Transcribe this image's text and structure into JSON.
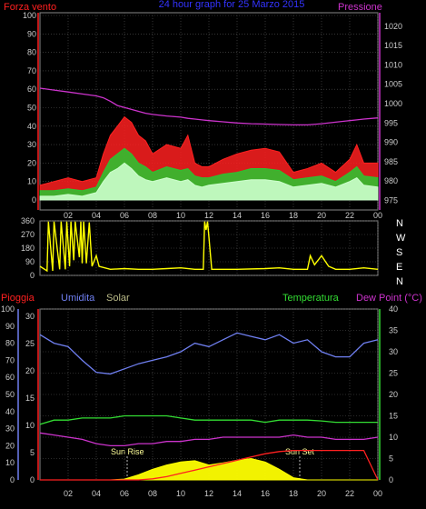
{
  "colors": {
    "background": "#000000",
    "wind": "#ff2020",
    "wind_mid": "#30c030",
    "wind_low": "#ccffcc",
    "pressure": "#cc33cc",
    "direction": "#ffff00",
    "rain": "#ff2020",
    "humidity": "#6f7ff0",
    "solar": "#ffff00",
    "temperature": "#33dd33",
    "dewpoint": "#cc33cc",
    "title": "#3333ff",
    "grid": "#555555",
    "axis_text": "#cccccc"
  },
  "header": {
    "left": "Forza vento",
    "center": "24 hour graph for  25 Marzo 2015",
    "right": "Pressione"
  },
  "lower_header": {
    "rain": "Pioggia",
    "humidity": "Umidita",
    "solar": "Solar",
    "temperature": "Temperatura",
    "dewpoint": "Dew Point (°C)"
  },
  "direction_labels": [
    "N",
    "W",
    "S",
    "E",
    "N"
  ],
  "annotations": {
    "sunrise": "Sun Rise",
    "sunset": "Sun Set"
  },
  "x_tick_labels": [
    "02",
    "04",
    "06",
    "08",
    "10",
    "12",
    "14",
    "16",
    "18",
    "20",
    "22",
    "00"
  ],
  "chart_data": [
    {
      "type": "line",
      "title": "Forza vento / Pressione",
      "x_hours": [
        0,
        1,
        2,
        3,
        4,
        4.5,
        5,
        5.5,
        6,
        6.5,
        7,
        7.5,
        8,
        9,
        10,
        10.5,
        11,
        11.5,
        12,
        13,
        14,
        15,
        16,
        17,
        18,
        19,
        20,
        21,
        22,
        22.5,
        23,
        24
      ],
      "series": [
        {
          "name": "Forza vento",
          "axis": "left",
          "values": [
            8,
            10,
            12,
            10,
            12,
            25,
            35,
            40,
            45,
            42,
            35,
            32,
            25,
            30,
            28,
            35,
            20,
            18,
            18,
            22,
            25,
            27,
            28,
            26,
            15,
            17,
            20,
            15,
            22,
            30,
            20,
            20
          ]
        },
        {
          "name": "Forza vento (mid)",
          "axis": "left",
          "values": [
            5,
            5,
            6,
            5,
            7,
            15,
            22,
            25,
            28,
            25,
            20,
            18,
            15,
            18,
            16,
            17,
            13,
            12,
            12,
            14,
            15,
            17,
            17,
            16,
            11,
            12,
            13,
            10,
            15,
            18,
            13,
            12
          ]
        },
        {
          "name": "Forza vento (low)",
          "axis": "left",
          "values": [
            2,
            2,
            3,
            2,
            4,
            10,
            15,
            17,
            20,
            17,
            13,
            11,
            10,
            12,
            10,
            11,
            8,
            7,
            8,
            9,
            10,
            11,
            11,
            10,
            7,
            8,
            9,
            7,
            10,
            12,
            8,
            7
          ]
        },
        {
          "name": "Pressione",
          "axis": "right",
          "values": [
            1004,
            1003.5,
            1003,
            1002.5,
            1002,
            1001.5,
            1000.6,
            999.5,
            999,
            998.5,
            998,
            997.5,
            997.2,
            996.8,
            996.5,
            996.2,
            996,
            995.8,
            995.6,
            995.3,
            995,
            994.8,
            994.7,
            994.6,
            994.5,
            994.5,
            994.8,
            995.2,
            995.6,
            995.8,
            996,
            996.3
          ]
        }
      ],
      "ylim_left": [
        0,
        100
      ],
      "y_ticks_left": [
        0,
        10,
        20,
        30,
        40,
        50,
        60,
        70,
        80,
        90,
        100
      ],
      "ylim_right": [
        972.5,
        1023.5
      ],
      "y_ticks_right": [
        975,
        980,
        985,
        990,
        995,
        1000,
        1005,
        1010,
        1015,
        1020
      ],
      "xlim": [
        0,
        24
      ]
    },
    {
      "type": "line",
      "title": "Direzione vento",
      "x_hours": [
        0,
        0.5,
        0.6,
        0.9,
        1.0,
        1.4,
        1.5,
        1.8,
        1.9,
        2.1,
        2.2,
        2.4,
        2.5,
        2.8,
        2.9,
        3.0,
        3.1,
        3.3,
        3.5,
        3.7,
        4.0,
        4.2,
        5,
        6,
        7,
        8,
        9,
        10,
        11,
        11.6,
        11.7,
        11.8,
        11.9,
        12.2,
        12.5,
        14,
        16,
        17,
        18,
        19,
        19.2,
        19.5,
        20,
        20.5,
        21,
        22,
        23,
        24
      ],
      "values": [
        60,
        30,
        355,
        30,
        355,
        40,
        355,
        40,
        355,
        60,
        355,
        100,
        355,
        120,
        355,
        80,
        355,
        80,
        350,
        60,
        130,
        60,
        40,
        45,
        40,
        40,
        45,
        50,
        40,
        40,
        355,
        300,
        355,
        40,
        40,
        40,
        45,
        50,
        40,
        40,
        130,
        70,
        130,
        60,
        40,
        40,
        50,
        40
      ],
      "ylim": [
        0,
        360
      ],
      "y_ticks": [
        0,
        90,
        180,
        270,
        360
      ],
      "xlim": [
        0,
        24
      ]
    },
    {
      "type": "line",
      "title": "Pioggia / Umidita / Solar / Temperatura / Dew Point",
      "x_hours": [
        0,
        1,
        2,
        3,
        4,
        5,
        6,
        7,
        8,
        9,
        10,
        11,
        12,
        13,
        14,
        15,
        16,
        17,
        18,
        19,
        20,
        21,
        22,
        23,
        24
      ],
      "series": [
        {
          "name": "Umidita",
          "axis": "humidity",
          "values": [
            85,
            80,
            78,
            70,
            63,
            62,
            65,
            68,
            70,
            72,
            75,
            80,
            78,
            82,
            86,
            84,
            82,
            85,
            80,
            82,
            75,
            72,
            72,
            80,
            82
          ]
        },
        {
          "name": "Temperatura",
          "axis": "temperature",
          "values": [
            13,
            14,
            14,
            14.5,
            14.5,
            14.5,
            15,
            15,
            15,
            15,
            14.5,
            14,
            14,
            14,
            14,
            14,
            13.5,
            14,
            14,
            14,
            13.8,
            13.5,
            13.5,
            13.5,
            13.5
          ]
        },
        {
          "name": "Dew Point (°C)",
          "axis": "temperature",
          "values": [
            11,
            10.5,
            10,
            9.5,
            8.5,
            8,
            8,
            8.5,
            8.5,
            9,
            9,
            9.5,
            9.5,
            10,
            10,
            10,
            10,
            10,
            10.5,
            10,
            10,
            9.5,
            9.5,
            9.5,
            10
          ]
        },
        {
          "name": "Pioggia",
          "axis": "rain",
          "values": [
            0,
            0,
            0,
            0,
            0,
            0,
            0,
            0,
            0.2,
            0.6,
            1.2,
            1.8,
            2.4,
            3,
            3.6,
            4.2,
            4.8,
            5.2,
            5.4,
            5.4,
            5.4,
            5.4,
            5.4,
            5.4,
            0
          ]
        },
        {
          "name": "Solar",
          "axis": "solar",
          "values": [
            0,
            0,
            0,
            0,
            0,
            0,
            0.2,
            1.2,
            2.5,
            3.5,
            4.2,
            4.5,
            3.5,
            4.0,
            4.6,
            5.0,
            4.2,
            2.5,
            0.5,
            0,
            0,
            0,
            0,
            0,
            0
          ]
        }
      ],
      "y_ticks_rain": [
        0,
        5,
        10,
        15,
        20,
        25,
        30
      ],
      "y_ticks_humidity": [
        0,
        10,
        20,
        30,
        40,
        50,
        60,
        70,
        80,
        90,
        100
      ],
      "y_ticks_temperature": [
        0,
        5,
        10,
        15,
        20,
        25,
        30,
        35,
        40
      ],
      "ylim_temperature": [
        0,
        40
      ],
      "xlim": [
        0,
        24
      ]
    }
  ]
}
